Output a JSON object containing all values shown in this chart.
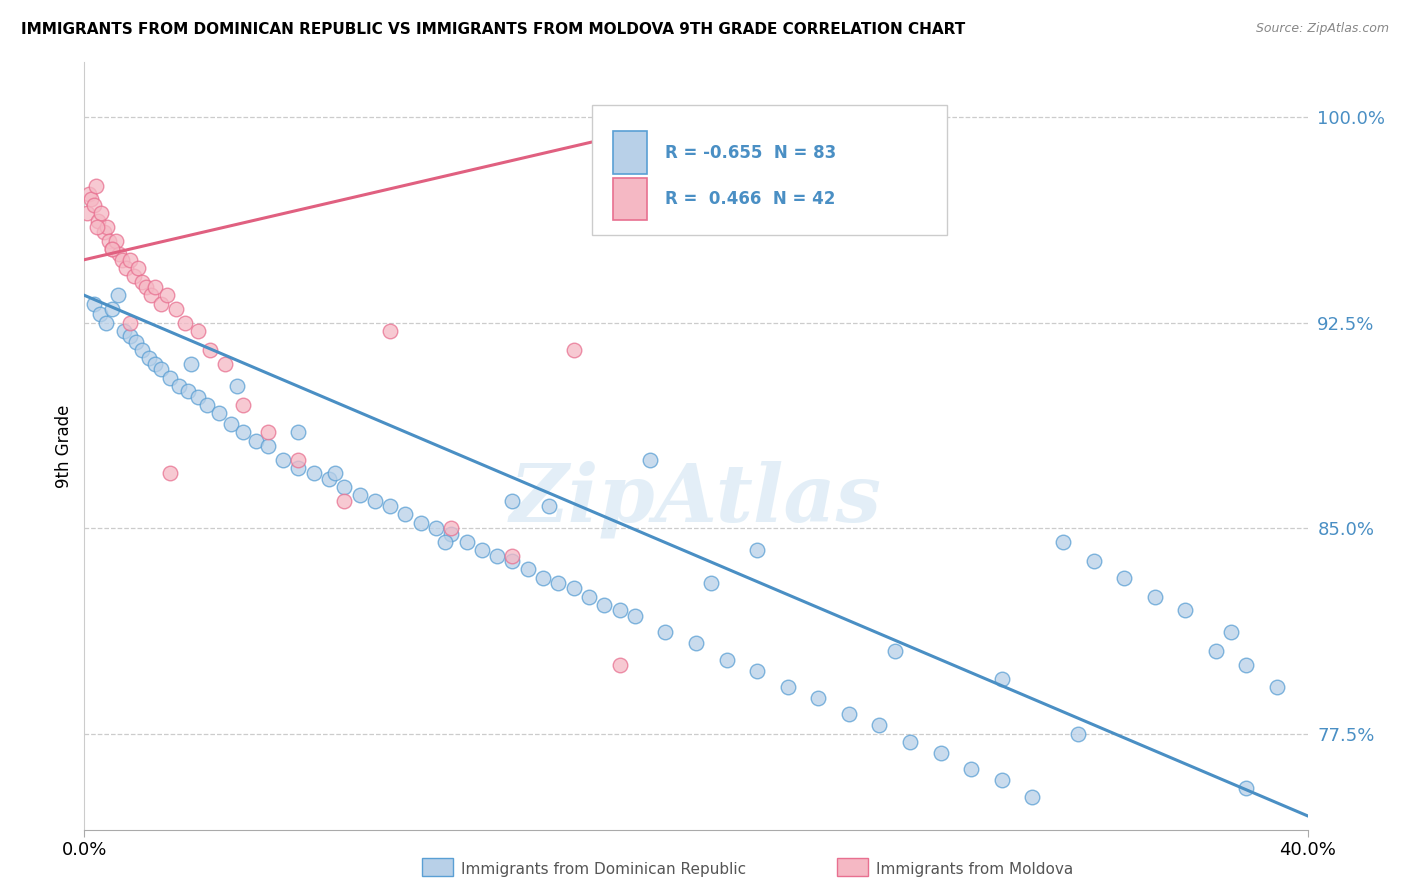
{
  "title": "IMMIGRANTS FROM DOMINICAN REPUBLIC VS IMMIGRANTS FROM MOLDOVA 9TH GRADE CORRELATION CHART",
  "source": "Source: ZipAtlas.com",
  "ylabel": "9th Grade",
  "legend_blue_r": "-0.655",
  "legend_blue_n": "83",
  "legend_pink_r": "0.466",
  "legend_pink_n": "42",
  "legend_blue_label": "Immigrants from Dominican Republic",
  "legend_pink_label": "Immigrants from Moldova",
  "watermark": "ZipAtlas",
  "blue_color": "#b8d0e8",
  "blue_edge_color": "#5a9fd4",
  "blue_line_color": "#4a8fc4",
  "pink_color": "#f5b8c4",
  "pink_edge_color": "#e87090",
  "pink_line_color": "#e06080",
  "right_tick_color": "#4a8fc4",
  "xmin": 0.0,
  "xmax": 40.0,
  "ymin": 74.0,
  "ymax": 102.0,
  "yticks": [
    77.5,
    85.0,
    92.5,
    100.0
  ],
  "blue_trend_x": [
    0.0,
    40.0
  ],
  "blue_trend_y": [
    93.5,
    74.5
  ],
  "pink_trend_x": [
    0.0,
    17.0
  ],
  "pink_trend_y": [
    94.8,
    99.2
  ],
  "blue_scatter_x": [
    0.3,
    0.5,
    0.7,
    0.9,
    1.1,
    1.3,
    1.5,
    1.7,
    1.9,
    2.1,
    2.3,
    2.5,
    2.8,
    3.1,
    3.4,
    3.7,
    4.0,
    4.4,
    4.8,
    5.2,
    5.6,
    6.0,
    6.5,
    7.0,
    7.5,
    8.0,
    8.5,
    9.0,
    9.5,
    10.0,
    10.5,
    11.0,
    11.5,
    12.0,
    12.5,
    13.0,
    13.5,
    14.0,
    14.5,
    15.0,
    15.5,
    16.0,
    16.5,
    17.0,
    17.5,
    18.0,
    19.0,
    20.0,
    21.0,
    22.0,
    23.0,
    24.0,
    25.0,
    26.0,
    27.0,
    28.0,
    29.0,
    30.0,
    31.0,
    32.0,
    33.0,
    34.0,
    35.0,
    36.0,
    37.0,
    38.0,
    39.0,
    5.0,
    8.2,
    11.8,
    15.2,
    20.5,
    26.5,
    32.5,
    38.0,
    3.5,
    7.0,
    14.0,
    22.0,
    30.0,
    37.5,
    18.5
  ],
  "blue_scatter_y": [
    93.2,
    92.8,
    92.5,
    93.0,
    93.5,
    92.2,
    92.0,
    91.8,
    91.5,
    91.2,
    91.0,
    90.8,
    90.5,
    90.2,
    90.0,
    89.8,
    89.5,
    89.2,
    88.8,
    88.5,
    88.2,
    88.0,
    87.5,
    87.2,
    87.0,
    86.8,
    86.5,
    86.2,
    86.0,
    85.8,
    85.5,
    85.2,
    85.0,
    84.8,
    84.5,
    84.2,
    84.0,
    83.8,
    83.5,
    83.2,
    83.0,
    82.8,
    82.5,
    82.2,
    82.0,
    81.8,
    81.2,
    80.8,
    80.2,
    79.8,
    79.2,
    78.8,
    78.2,
    77.8,
    77.2,
    76.8,
    76.2,
    75.8,
    75.2,
    84.5,
    83.8,
    83.2,
    82.5,
    82.0,
    80.5,
    80.0,
    79.2,
    90.2,
    87.0,
    84.5,
    85.8,
    83.0,
    80.5,
    77.5,
    75.5,
    91.0,
    88.5,
    86.0,
    84.2,
    79.5,
    81.2,
    87.5
  ],
  "pink_scatter_x": [
    0.08,
    0.15,
    0.22,
    0.3,
    0.38,
    0.46,
    0.55,
    0.64,
    0.73,
    0.82,
    0.92,
    1.02,
    1.13,
    1.24,
    1.36,
    1.48,
    1.61,
    1.74,
    1.88,
    2.02,
    2.17,
    2.32,
    2.5,
    2.7,
    3.0,
    3.3,
    3.7,
    4.1,
    4.6,
    5.2,
    6.0,
    7.0,
    8.5,
    10.0,
    12.0,
    14.0,
    16.0,
    17.5,
    0.4,
    0.9,
    1.5,
    2.8
  ],
  "pink_scatter_y": [
    96.5,
    97.2,
    97.0,
    96.8,
    97.5,
    96.2,
    96.5,
    95.8,
    96.0,
    95.5,
    95.2,
    95.5,
    95.0,
    94.8,
    94.5,
    94.8,
    94.2,
    94.5,
    94.0,
    93.8,
    93.5,
    93.8,
    93.2,
    93.5,
    93.0,
    92.5,
    92.2,
    91.5,
    91.0,
    89.5,
    88.5,
    87.5,
    86.0,
    92.2,
    85.0,
    84.0,
    91.5,
    80.0,
    96.0,
    95.2,
    92.5,
    87.0
  ]
}
